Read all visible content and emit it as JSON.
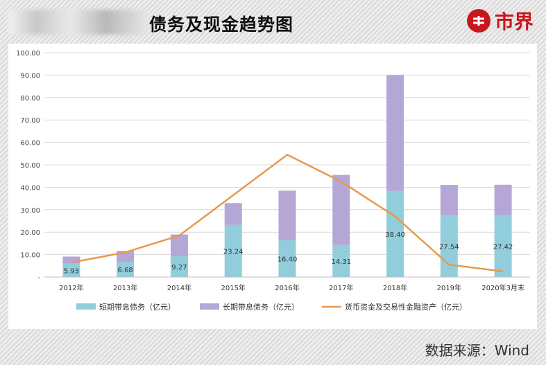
{
  "header": {
    "title": "债务及现金趋势图",
    "brand_name": "市界",
    "brand_icon": "brand-logo-icon"
  },
  "footer": {
    "source": "数据来源：Wind"
  },
  "colors": {
    "short_term": "#92cddc",
    "long_term": "#b4a7d6",
    "cash_line": "#e69a4e",
    "grid": "#d9d9d9"
  },
  "chart_data": {
    "type": "bar",
    "ylim": [
      0,
      100
    ],
    "y_ticks": [
      "-",
      "10.00",
      "20.00",
      "30.00",
      "40.00",
      "50.00",
      "60.00",
      "70.00",
      "80.00",
      "90.00",
      "100.00"
    ],
    "categories": [
      "2012年",
      "2013年",
      "2014年",
      "2015年",
      "2016年",
      "2017年",
      "2018年",
      "2019年",
      "2020年3月末"
    ],
    "series": [
      {
        "name": "短期带息债务（亿元）",
        "kind": "stacked-bar",
        "values": [
          5.93,
          6.68,
          9.27,
          23.24,
          16.4,
          14.31,
          38.4,
          27.54,
          27.42
        ],
        "labels": [
          "5.93",
          "6.68",
          "9.27",
          "23.24",
          "16.40",
          "14.31",
          "38.40",
          "27.54",
          "27.42"
        ]
      },
      {
        "name": "长期带息债务（亿元）",
        "kind": "stacked-bar",
        "values": [
          3.2,
          5.0,
          9.7,
          9.7,
          22.1,
          31.2,
          51.6,
          13.5,
          13.7
        ]
      },
      {
        "name": "货币资金及交易性金融资产（亿元）",
        "kind": "line",
        "values": [
          6.5,
          11.0,
          18.5,
          36.5,
          54.5,
          42.5,
          27.0,
          5.5,
          2.5
        ]
      }
    ],
    "legend": "bottom",
    "grid": true
  }
}
